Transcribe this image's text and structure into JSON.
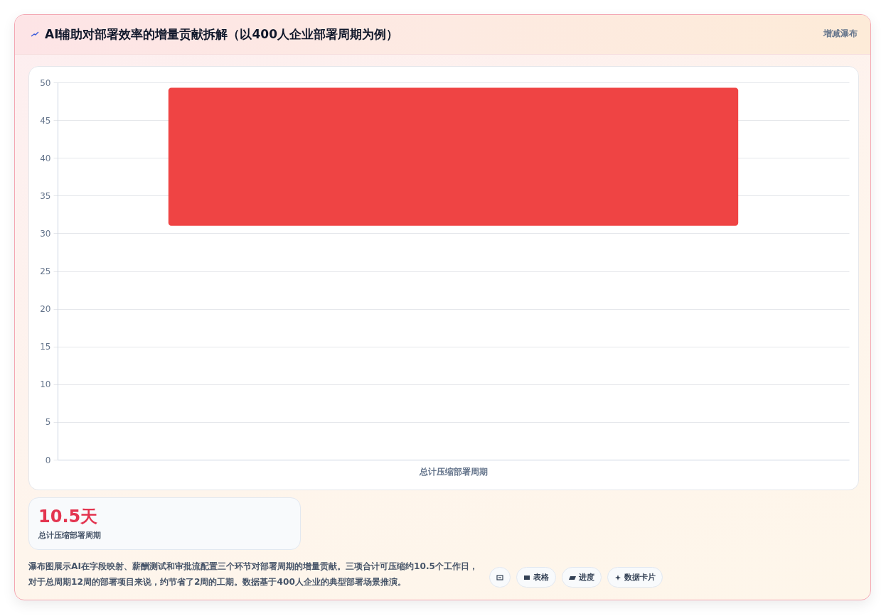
{
  "chart_data": [
    {
      "type": "bar",
      "title": "AI辅助对部署效率的增量贡献拆解（以400人企业部署周期为例）",
      "categories": [
        "总计压缩部署周期"
      ],
      "values": [
        18.3
      ],
      "base": [
        31
      ],
      "color": "#ef4444",
      "ylim": [
        0,
        50
      ],
      "yticks": [
        0,
        5,
        10,
        15,
        20,
        25,
        30,
        35,
        40,
        45,
        50
      ],
      "grid": "y",
      "annotations": [
        "增减瀑布",
        "瀑布图展示AI在字段映射、薪酬测试和审批流配置三个环节对部署周期的增量贡献。三项合计可压缩约10.5个工作日，对于总周期12周的部署项目来说，约节省了2周的工期。数据基于400人企业的典型部署场景推演。",
        "表格",
        "进度",
        "数据卡片"
      ]
    },
    {
      "type": "other",
      "title": "10.5天",
      "subtitle": "总计压缩部署周期"
    }
  ]
}
